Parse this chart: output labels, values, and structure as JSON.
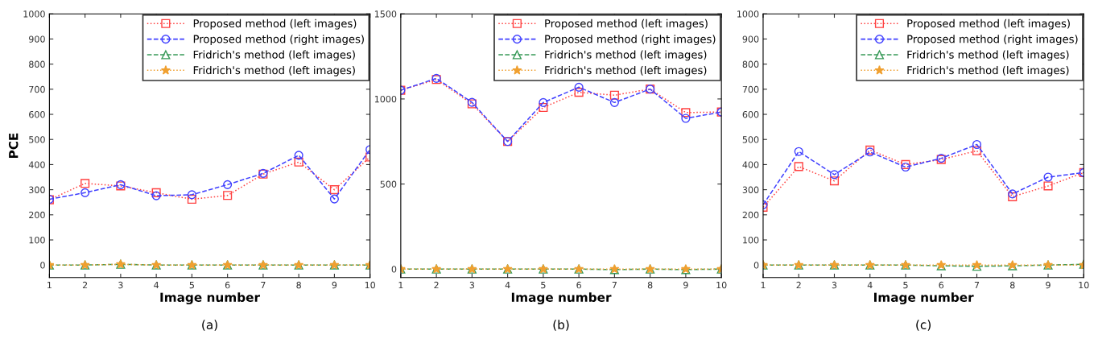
{
  "chart_data": [
    {
      "type": "line",
      "xlabel": "Image number",
      "ylabel": "PCE",
      "annotations": [
        "(a)"
      ],
      "x": [
        1,
        2,
        3,
        4,
        5,
        6,
        7,
        8,
        9,
        10
      ],
      "xlim": [
        1,
        10
      ],
      "xticks": [
        1,
        2,
        3,
        4,
        5,
        6,
        7,
        8,
        9,
        10
      ],
      "ylim": [
        -50,
        1000
      ],
      "yticks": [
        0,
        100,
        200,
        300,
        400,
        500,
        600,
        700,
        800,
        900,
        1000
      ],
      "legend": "top right",
      "grid": false,
      "series": [
        {
          "name": "Proposed method (left images)",
          "color": "#ff4040",
          "marker": "square",
          "line_style": "dotted",
          "values": [
            260,
            325,
            315,
            288,
            262,
            277,
            362,
            410,
            300,
            430
          ]
        },
        {
          "name": "Proposed method (right images)",
          "color": "#4040ff",
          "marker": "circle",
          "line_style": "dashed",
          "values": [
            262,
            288,
            320,
            276,
            280,
            320,
            365,
            437,
            263,
            460
          ]
        },
        {
          "name": "Fridrich's method (left images)",
          "color": "#3a9a5a",
          "marker": "triangle",
          "line_style": "dashed",
          "values": [
            0,
            0,
            3,
            0,
            0,
            0,
            0,
            0,
            0,
            0
          ]
        },
        {
          "name": "Fridrich's method (left images)",
          "color": "#f0a030",
          "marker": "star",
          "line_style": "dotted",
          "values": [
            0,
            0,
            3,
            0,
            0,
            0,
            0,
            0,
            0,
            0
          ]
        }
      ]
    },
    {
      "type": "line",
      "xlabel": "Image number",
      "annotations": [
        "(b)"
      ],
      "x": [
        1,
        2,
        3,
        4,
        5,
        6,
        7,
        8,
        9,
        10
      ],
      "xlim": [
        1,
        10
      ],
      "xticks": [
        1,
        2,
        3,
        4,
        5,
        6,
        7,
        8,
        9,
        10
      ],
      "ylim": [
        -50,
        1500
      ],
      "yticks": [
        0,
        500,
        1000,
        1500
      ],
      "legend": "top right",
      "grid": false,
      "series": [
        {
          "name": "Proposed method (left images)",
          "color": "#ff4040",
          "marker": "square",
          "line_style": "dotted",
          "values": [
            1051,
            1114,
            971,
            750,
            950,
            1039,
            1022,
            1058,
            920,
            923
          ]
        },
        {
          "name": "Proposed method (right images)",
          "color": "#4040ff",
          "marker": "circle",
          "line_style": "dashed",
          "values": [
            1051,
            1121,
            980,
            750,
            979,
            1069,
            979,
            1058,
            886,
            923
          ]
        },
        {
          "name": "Fridrich's method (left images)",
          "color": "#3a9a5a",
          "marker": "triangle",
          "line_style": "dashed",
          "values": [
            0,
            0,
            0,
            0,
            0,
            0,
            -3,
            0,
            -3,
            0
          ]
        },
        {
          "name": "Fridrich's method (left images)",
          "color": "#f0a030",
          "marker": "star",
          "line_style": "dotted",
          "values": [
            0,
            0,
            0,
            0,
            0,
            0,
            0,
            0,
            0,
            0
          ]
        }
      ]
    },
    {
      "type": "line",
      "xlabel": "Image number",
      "annotations": [
        "(c)"
      ],
      "x": [
        1,
        2,
        3,
        4,
        5,
        6,
        7,
        8,
        9,
        10
      ],
      "xlim": [
        1,
        10
      ],
      "xticks": [
        1,
        2,
        3,
        4,
        5,
        6,
        7,
        8,
        9,
        10
      ],
      "ylim": [
        -50,
        1000
      ],
      "yticks": [
        0,
        100,
        200,
        300,
        400,
        500,
        600,
        700,
        800,
        900,
        1000
      ],
      "legend": "top right",
      "grid": false,
      "series": [
        {
          "name": "Proposed method (left images)",
          "color": "#ff4040",
          "marker": "square",
          "line_style": "dotted",
          "values": [
            230,
            392,
            335,
            458,
            400,
            420,
            455,
            272,
            315,
            368
          ]
        },
        {
          "name": "Proposed method (right images)",
          "color": "#4040ff",
          "marker": "circle",
          "line_style": "dashed",
          "values": [
            240,
            452,
            360,
            450,
            390,
            425,
            480,
            283,
            350,
            368
          ]
        },
        {
          "name": "Fridrich's method (left images)",
          "color": "#3a9a5a",
          "marker": "triangle",
          "line_style": "dashed",
          "values": [
            0,
            0,
            0,
            0,
            0,
            -3,
            -5,
            -3,
            0,
            3
          ]
        },
        {
          "name": "Fridrich's method (left images)",
          "color": "#f0a030",
          "marker": "star",
          "line_style": "dotted",
          "values": [
            0,
            0,
            0,
            0,
            0,
            0,
            0,
            0,
            0,
            0
          ]
        }
      ]
    }
  ]
}
